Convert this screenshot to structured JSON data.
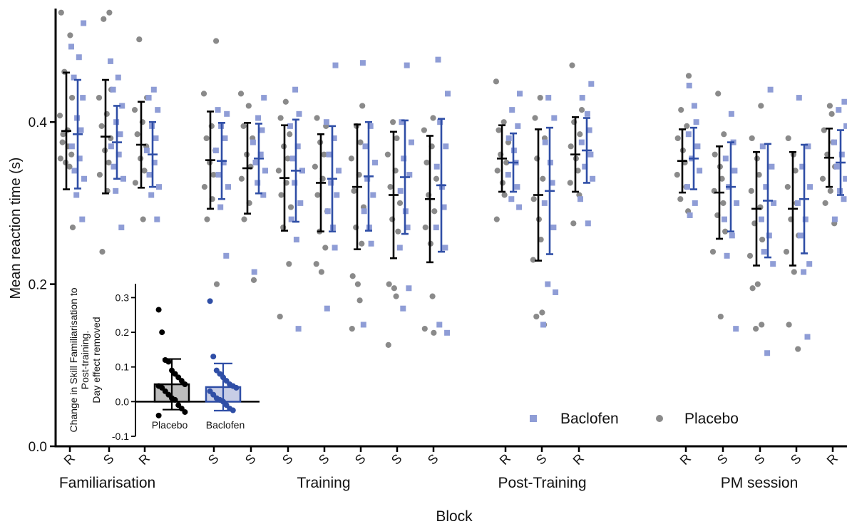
{
  "colors": {
    "placebo": "#8a8a8a",
    "placebo_bar": "#000000",
    "baclofen": "#8f9dd6",
    "baclofen_bar": "#2f4ea6",
    "axis": "#000000"
  },
  "chart_data": [
    {
      "type": "scatter",
      "ylabel": "Mean reaction time (s)",
      "xlabel": "Block",
      "ylim": [
        0.0,
        0.54
      ],
      "yticks": [
        0.0,
        0.2,
        0.4
      ],
      "ytick_labels": [
        "0.0",
        "0.2",
        "0.4"
      ],
      "legend": {
        "placement": "bottom-right",
        "entries": [
          "Baclofen",
          "Placebo"
        ]
      },
      "groups": [
        "Familiarisation",
        "Training",
        "Post-Training",
        "PM session"
      ],
      "blocks": [
        {
          "label": "R",
          "group": "Familiarisation",
          "placebo": {
            "mean": 0.389,
            "sd": 0.072,
            "points": [
              0.535,
              0.507,
              0.462,
              0.43,
              0.408,
              0.39,
              0.375,
              0.36,
              0.35,
              0.345,
              0.355,
              0.37,
              0.385,
              0.27
            ]
          },
          "baclofen": {
            "mean": 0.385,
            "sd": 0.067,
            "points": [
              0.522,
              0.493,
              0.48,
              0.455,
              0.43,
              0.405,
              0.39,
              0.37,
              0.355,
              0.34,
              0.33,
              0.31,
              0.28
            ]
          }
        },
        {
          "label": "S",
          "group": "Familiarisation",
          "placebo": {
            "mean": 0.382,
            "sd": 0.07,
            "points": [
              0.535,
              0.527,
              0.44,
              0.43,
              0.41,
              0.395,
              0.38,
              0.365,
              0.35,
              0.335,
              0.315,
              0.24
            ]
          },
          "baclofen": {
            "mean": 0.375,
            "sd": 0.045,
            "points": [
              0.475,
              0.455,
              0.44,
              0.42,
              0.4,
              0.385,
              0.37,
              0.36,
              0.345,
              0.33,
              0.315,
              0.27
            ]
          }
        },
        {
          "label": "R",
          "group": "Familiarisation",
          "placebo": {
            "mean": 0.372,
            "sd": 0.053,
            "points": [
              0.502,
              0.43,
              0.415,
              0.4,
              0.385,
              0.37,
              0.355,
              0.34,
              0.325,
              0.28
            ]
          },
          "baclofen": {
            "mean": 0.36,
            "sd": 0.04,
            "points": [
              0.44,
              0.43,
              0.415,
              0.395,
              0.38,
              0.365,
              0.35,
              0.335,
              0.32,
              0.31,
              0.28
            ]
          }
        },
        {
          "label": "S",
          "group": "Training",
          "placebo": {
            "mean": 0.353,
            "sd": 0.06,
            "points": [
              0.5,
              0.435,
              0.395,
              0.38,
              0.365,
              0.35,
              0.335,
              0.32,
              0.305,
              0.28,
              0.2
            ]
          },
          "baclofen": {
            "mean": 0.352,
            "sd": 0.047,
            "points": [
              0.415,
              0.41,
              0.395,
              0.38,
              0.365,
              0.35,
              0.335,
              0.32,
              0.295,
              0.235
            ]
          }
        },
        {
          "label": "S",
          "group": "Training",
          "placebo": {
            "mean": 0.343,
            "sd": 0.056,
            "points": [
              0.435,
              0.42,
              0.395,
              0.38,
              0.36,
              0.345,
              0.33,
              0.3,
              0.28,
              0.205
            ]
          },
          "baclofen": {
            "mean": 0.355,
            "sd": 0.043,
            "points": [
              0.43,
              0.405,
              0.39,
              0.375,
              0.36,
              0.35,
              0.34,
              0.325,
              0.31,
              0.215
            ]
          }
        },
        {
          "label": "S",
          "group": "Training",
          "placebo": {
            "mean": 0.331,
            "sd": 0.065,
            "points": [
              0.425,
              0.405,
              0.385,
              0.37,
              0.355,
              0.34,
              0.325,
              0.31,
              0.295,
              0.27,
              0.225,
              0.16
            ]
          },
          "baclofen": {
            "mean": 0.34,
            "sd": 0.063,
            "points": [
              0.44,
              0.41,
              0.395,
              0.37,
              0.355,
              0.34,
              0.325,
              0.3,
              0.28,
              0.255,
              0.145
            ]
          }
        },
        {
          "label": "S",
          "group": "Training",
          "placebo": {
            "mean": 0.325,
            "sd": 0.06,
            "points": [
              0.405,
              0.395,
              0.375,
              0.36,
              0.345,
              0.33,
              0.31,
              0.29,
              0.265,
              0.245,
              0.225,
              0.215
            ]
          },
          "baclofen": {
            "mean": 0.33,
            "sd": 0.065,
            "points": [
              0.47,
              0.4,
              0.38,
              0.36,
              0.34,
              0.325,
              0.31,
              0.29,
              0.27,
              0.245,
              0.17
            ]
          }
        },
        {
          "label": "S",
          "group": "Training",
          "placebo": {
            "mean": 0.32,
            "sd": 0.077,
            "points": [
              0.42,
              0.395,
              0.375,
              0.355,
              0.335,
              0.315,
              0.295,
              0.27,
              0.25,
              0.21,
              0.2,
              0.18,
              0.145
            ]
          },
          "baclofen": {
            "mean": 0.333,
            "sd": 0.067,
            "points": [
              0.473,
              0.395,
              0.37,
              0.35,
              0.33,
              0.31,
              0.29,
              0.27,
              0.25,
              0.15
            ]
          }
        },
        {
          "label": "S",
          "group": "Training",
          "placebo": {
            "mean": 0.31,
            "sd": 0.078,
            "points": [
              0.4,
              0.38,
              0.36,
              0.34,
              0.32,
              0.3,
              0.28,
              0.265,
              0.2,
              0.195,
              0.185,
              0.125
            ]
          },
          "baclofen": {
            "mean": 0.332,
            "sd": 0.07,
            "points": [
              0.47,
              0.4,
              0.375,
              0.355,
              0.335,
              0.315,
              0.29,
              0.27,
              0.245,
              0.195,
              0.17
            ]
          }
        },
        {
          "label": "S",
          "group": "Training",
          "placebo": {
            "mean": 0.305,
            "sd": 0.078,
            "points": [
              0.405,
              0.39,
              0.37,
              0.35,
              0.33,
              0.31,
              0.29,
              0.27,
              0.25,
              0.185,
              0.145,
              0.14
            ]
          },
          "baclofen": {
            "mean": 0.322,
            "sd": 0.082,
            "points": [
              0.477,
              0.435,
              0.4,
              0.37,
              0.345,
              0.32,
              0.295,
              0.27,
              0.245,
              0.15,
              0.14
            ]
          }
        },
        {
          "label": "R",
          "group": "Post-Training",
          "placebo": {
            "mean": 0.355,
            "sd": 0.041,
            "points": [
              0.45,
              0.4,
              0.39,
              0.375,
              0.36,
              0.35,
              0.34,
              0.325,
              0.31,
              0.28
            ]
          },
          "baclofen": {
            "mean": 0.35,
            "sd": 0.036,
            "points": [
              0.435,
              0.415,
              0.395,
              0.38,
              0.365,
              0.35,
              0.335,
              0.32,
              0.305,
              0.295
            ]
          }
        },
        {
          "label": "S",
          "group": "Post-Training",
          "placebo": {
            "mean": 0.31,
            "sd": 0.081,
            "points": [
              0.43,
              0.405,
              0.38,
              0.355,
              0.33,
              0.305,
              0.28,
              0.255,
              0.23,
              0.165,
              0.16,
              0.15
            ]
          },
          "baclofen": {
            "mean": 0.315,
            "sd": 0.078,
            "points": [
              0.43,
              0.405,
              0.375,
              0.35,
              0.325,
              0.3,
              0.27,
              0.2,
              0.19,
              0.15
            ]
          }
        },
        {
          "label": "R",
          "group": "Post-Training",
          "placebo": {
            "mean": 0.36,
            "sd": 0.046,
            "points": [
              0.47,
              0.415,
              0.4,
              0.385,
              0.37,
              0.355,
              0.34,
              0.325,
              0.31,
              0.275
            ]
          },
          "baclofen": {
            "mean": 0.365,
            "sd": 0.04,
            "points": [
              0.447,
              0.43,
              0.41,
              0.39,
              0.375,
              0.36,
              0.345,
              0.33,
              0.305,
              0.275
            ]
          }
        },
        {
          "label": "R",
          "group": "PM session",
          "placebo": {
            "mean": 0.352,
            "sd": 0.039,
            "points": [
              0.457,
              0.415,
              0.395,
              0.38,
              0.365,
              0.35,
              0.335,
              0.32,
              0.305,
              0.29
            ]
          },
          "baclofen": {
            "mean": 0.355,
            "sd": 0.038,
            "points": [
              0.445,
              0.42,
              0.4,
              0.385,
              0.37,
              0.355,
              0.34,
              0.32,
              0.3,
              0.285
            ]
          }
        },
        {
          "label": "S",
          "group": "PM session",
          "placebo": {
            "mean": 0.313,
            "sd": 0.057,
            "points": [
              0.435,
              0.385,
              0.36,
              0.345,
              0.33,
              0.315,
              0.3,
              0.285,
              0.265,
              0.24,
              0.16
            ]
          },
          "baclofen": {
            "mean": 0.32,
            "sd": 0.055,
            "points": [
              0.41,
              0.375,
              0.355,
              0.34,
              0.32,
              0.3,
              0.28,
              0.26,
              0.235,
              0.145
            ]
          }
        },
        {
          "label": "S",
          "group": "PM session",
          "placebo": {
            "mean": 0.293,
            "sd": 0.07,
            "points": [
              0.42,
              0.38,
              0.355,
              0.335,
              0.315,
              0.295,
              0.275,
              0.255,
              0.235,
              0.2,
              0.195,
              0.15,
              0.145
            ]
          },
          "baclofen": {
            "mean": 0.303,
            "sd": 0.07,
            "points": [
              0.44,
              0.37,
              0.345,
              0.32,
              0.3,
              0.28,
              0.26,
              0.24,
              0.225,
              0.115
            ]
          }
        },
        {
          "label": "S",
          "group": "PM session",
          "placebo": {
            "mean": 0.293,
            "sd": 0.07,
            "points": [
              0.38,
              0.36,
              0.34,
              0.32,
              0.3,
              0.28,
              0.26,
              0.24,
              0.215,
              0.15,
              0.12
            ]
          },
          "baclofen": {
            "mean": 0.305,
            "sd": 0.067,
            "points": [
              0.43,
              0.37,
              0.345,
              0.32,
              0.3,
              0.28,
              0.26,
              0.225,
              0.215,
              0.135
            ]
          }
        },
        {
          "label": "R",
          "group": "PM session",
          "placebo": {
            "mean": 0.356,
            "sd": 0.036,
            "points": [
              0.42,
              0.41,
              0.39,
              0.375,
              0.36,
              0.345,
              0.33,
              0.315,
              0.3,
              0.275
            ]
          },
          "baclofen": {
            "mean": 0.35,
            "sd": 0.04,
            "points": [
              0.425,
              0.415,
              0.395,
              0.375,
              0.36,
              0.345,
              0.33,
              0.315,
              0.305,
              0.28
            ]
          }
        }
      ]
    },
    {
      "type": "bar",
      "ylabel": "Change in Skill Familiarisation to Post-training. Day effect removed",
      "ylabel_lines": [
        "Change in Skill Familiarisation to",
        "Post-training.",
        "Day effect removed"
      ],
      "ylim": [
        -0.1,
        0.34
      ],
      "yticks": [
        -0.1,
        0.0,
        0.1,
        0.2,
        0.3
      ],
      "ytick_labels": [
        "-0.1",
        "0.0",
        "0.1",
        "0.2",
        "0.3"
      ],
      "categories": [
        "Placebo",
        "Baclofen"
      ],
      "series": [
        {
          "category": "Placebo",
          "mean": 0.05,
          "sd": 0.073,
          "points": [
            0.265,
            0.2,
            0.12,
            0.115,
            0.09,
            0.08,
            0.07,
            0.06,
            0.05,
            0.045,
            0.04,
            0.03,
            0.02,
            0.01,
            0.005,
            -0.01,
            -0.02,
            -0.03,
            -0.04
          ]
        },
        {
          "category": "Baclofen",
          "mean": 0.042,
          "sd": 0.068,
          "points": [
            0.29,
            0.13,
            0.09,
            0.08,
            0.07,
            0.06,
            0.05,
            0.045,
            0.04,
            0.03,
            0.02,
            0.01,
            0.005,
            0.0,
            -0.01,
            -0.02,
            -0.025
          ]
        }
      ]
    }
  ]
}
